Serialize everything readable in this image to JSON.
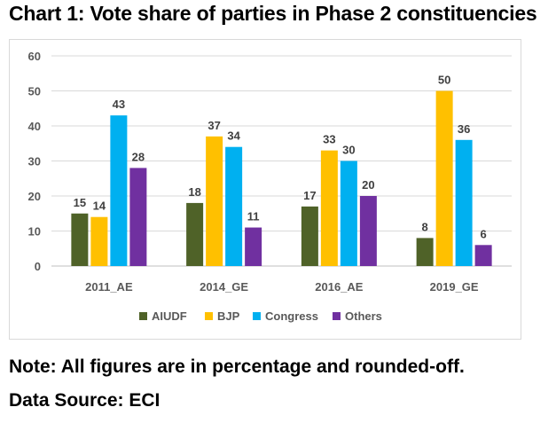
{
  "title": "Chart 1: Vote share of parties in Phase 2 constituencies",
  "note": "Note: All figures are in percentage and rounded-off.",
  "source": "Data Source: ECI",
  "chart_data": {
    "type": "bar",
    "categories": [
      "2011_AE",
      "2014_GE",
      "2016_AE",
      "2019_GE"
    ],
    "series": [
      {
        "name": "AIUDF",
        "color": "#4f6228",
        "values": [
          15,
          18,
          17,
          8
        ]
      },
      {
        "name": "BJP",
        "color": "#ffc000",
        "values": [
          14,
          37,
          33,
          50
        ]
      },
      {
        "name": "Congress",
        "color": "#00b0f0",
        "values": [
          43,
          34,
          30,
          36
        ]
      },
      {
        "name": "Others",
        "color": "#7030a0",
        "values": [
          28,
          11,
          20,
          6
        ]
      }
    ],
    "ylim": [
      0,
      60
    ],
    "yticks": [
      0,
      10,
      20,
      30,
      40,
      50,
      60
    ],
    "grid": true,
    "legend": "bottom",
    "data_labels": true
  }
}
